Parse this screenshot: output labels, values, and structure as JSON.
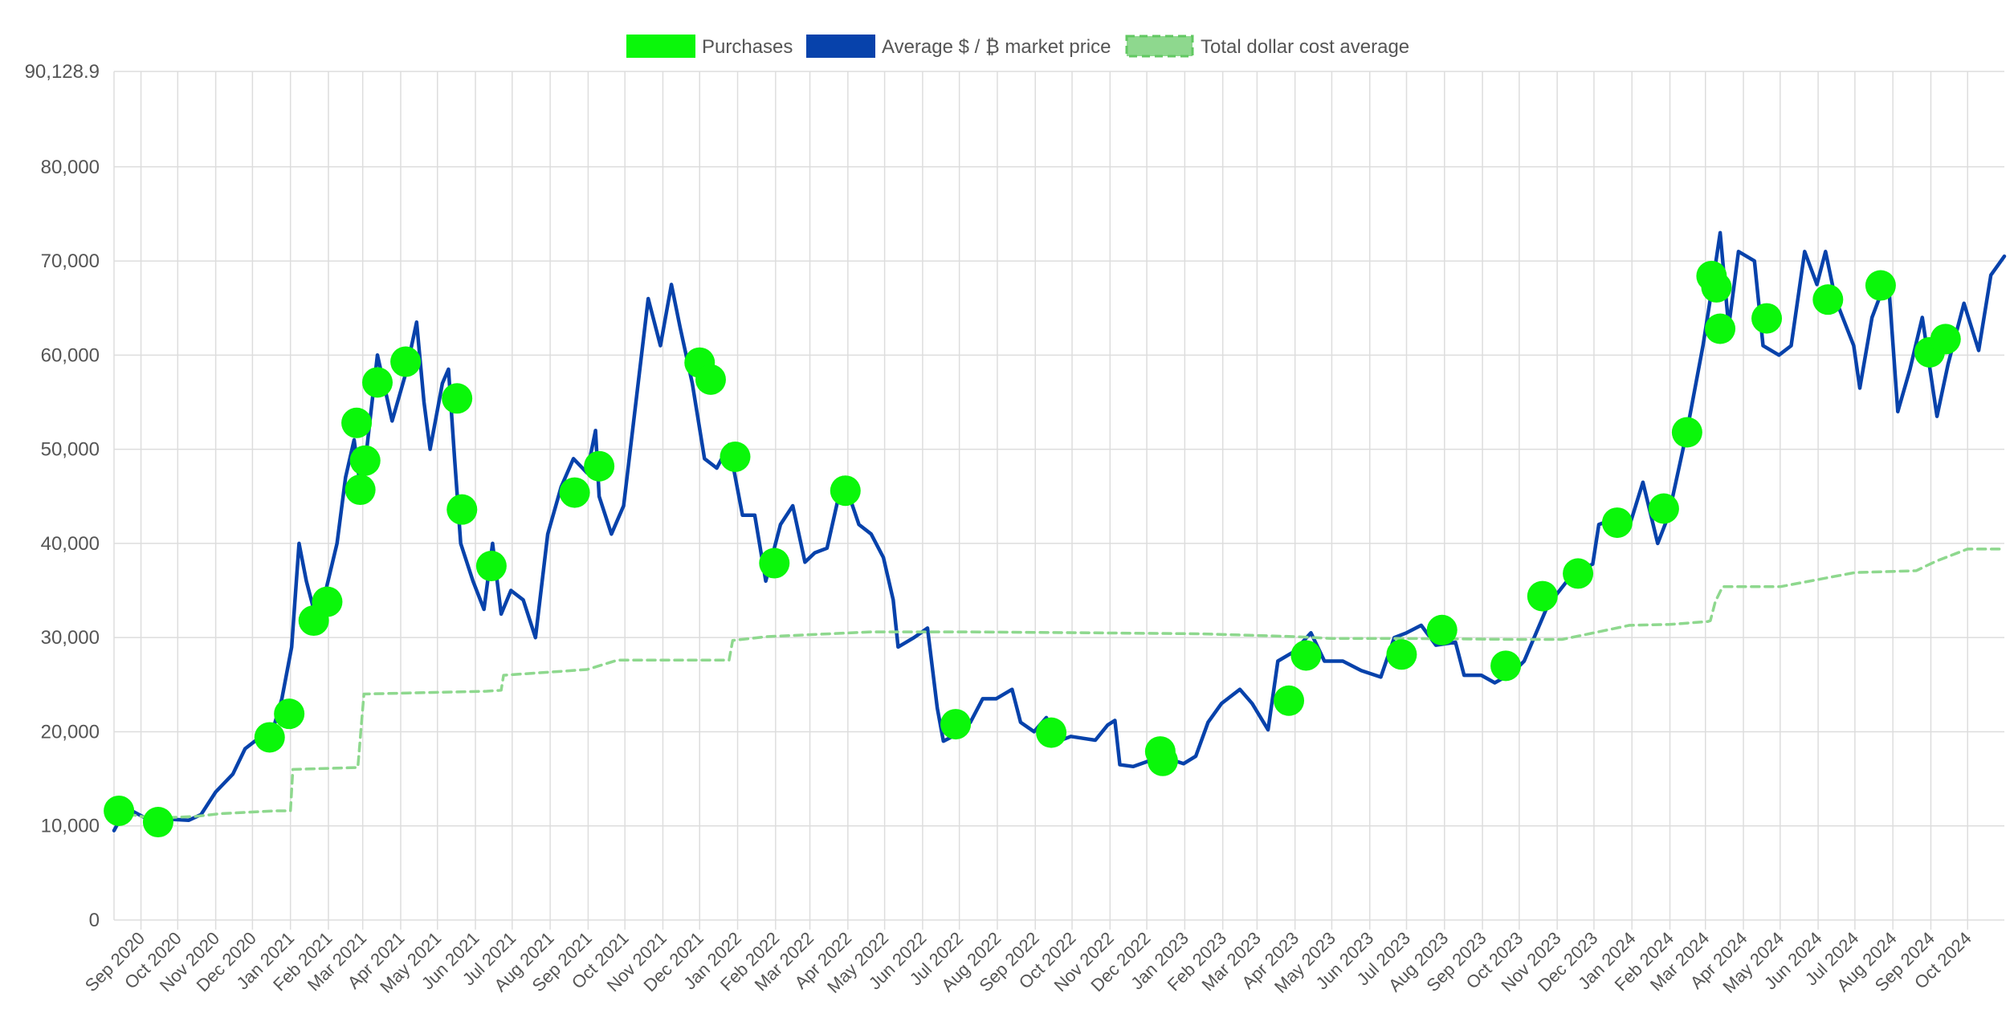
{
  "legend": [
    {
      "label": "Purchases",
      "color": "#0af70a",
      "style": "solid"
    },
    {
      "label": "Average $ / ₿ market price",
      "color": "#0742ab",
      "style": "solid"
    },
    {
      "label": "Total dollar cost average",
      "color": "#8ed88e",
      "style": "dashed"
    }
  ],
  "chart_data": {
    "type": "line",
    "title": "",
    "xlabel": "",
    "ylabel": "",
    "ylim": [
      0,
      90128.9
    ],
    "y_ticks": [
      "0",
      "10,000",
      "20,000",
      "30,000",
      "40,000",
      "50,000",
      "60,000",
      "70,000",
      "80,000",
      "90,128.9"
    ],
    "y_tick_values": [
      0,
      10000,
      20000,
      30000,
      40000,
      50000,
      60000,
      70000,
      80000,
      90128.9
    ],
    "x_range": [
      "2020-08-10",
      "2024-10-31"
    ],
    "x_ticks": [
      "Sep 2020",
      "Oct 2020",
      "Nov 2020",
      "Dec 2020",
      "Jan 2021",
      "Feb 2021",
      "Mar 2021",
      "Apr 2021",
      "May 2021",
      "Jun 2021",
      "Jul 2021",
      "Aug 2021",
      "Sep 2021",
      "Oct 2021",
      "Nov 2021",
      "Dec 2021",
      "Jan 2022",
      "Feb 2022",
      "Mar 2022",
      "Apr 2022",
      "May 2022",
      "Jun 2022",
      "Jul 2022",
      "Aug 2022",
      "Sep 2022",
      "Oct 2022",
      "Nov 2022",
      "Dec 2022",
      "Jan 2023",
      "Feb 2023",
      "Mar 2023",
      "Apr 2023",
      "May 2023",
      "Jun 2023",
      "Jul 2023",
      "Aug 2023",
      "Sep 2023",
      "Oct 2023",
      "Nov 2023",
      "Dec 2023",
      "Jan 2024",
      "Feb 2024",
      "Mar 2024",
      "Apr 2024",
      "May 2024",
      "Jun 2024",
      "Jul 2024",
      "Aug 2024",
      "Sep 2024",
      "Oct 2024"
    ],
    "x_tick_dates": [
      "2020-09-01",
      "2020-10-01",
      "2020-11-01",
      "2020-12-01",
      "2021-01-01",
      "2021-02-01",
      "2021-03-01",
      "2021-04-01",
      "2021-05-01",
      "2021-06-01",
      "2021-07-01",
      "2021-08-01",
      "2021-09-01",
      "2021-10-01",
      "2021-11-01",
      "2021-12-01",
      "2022-01-01",
      "2022-02-01",
      "2022-03-01",
      "2022-04-01",
      "2022-05-01",
      "2022-06-01",
      "2022-07-01",
      "2022-08-01",
      "2022-09-01",
      "2022-10-01",
      "2022-11-01",
      "2022-12-01",
      "2023-01-01",
      "2023-02-01",
      "2023-03-01",
      "2023-04-01",
      "2023-05-01",
      "2023-06-01",
      "2023-07-01",
      "2023-08-01",
      "2023-09-01",
      "2023-10-01",
      "2023-11-01",
      "2023-12-01",
      "2024-01-01",
      "2024-02-01",
      "2024-03-01",
      "2024-04-01",
      "2024-05-01",
      "2024-06-01",
      "2024-07-01",
      "2024-08-01",
      "2024-09-01",
      "2024-10-01"
    ],
    "grid": true,
    "legend_position": "top",
    "series": [
      {
        "name": "Average $ / ₿ market price",
        "color": "#0742ab",
        "points": [
          [
            "2020-08-10",
            9500
          ],
          [
            "2020-08-20",
            11900
          ],
          [
            "2020-09-05",
            10800
          ],
          [
            "2020-09-15",
            10400
          ],
          [
            "2020-09-25",
            10700
          ],
          [
            "2020-10-10",
            10600
          ],
          [
            "2020-10-20",
            11200
          ],
          [
            "2020-11-01",
            13600
          ],
          [
            "2020-11-15",
            15500
          ],
          [
            "2020-11-25",
            18200
          ],
          [
            "2020-12-05",
            19200
          ],
          [
            "2020-12-15",
            19000
          ],
          [
            "2020-12-25",
            23500
          ],
          [
            "2021-01-02",
            29000
          ],
          [
            "2021-01-08",
            40000
          ],
          [
            "2021-01-14",
            36000
          ],
          [
            "2021-01-22",
            32000
          ],
          [
            "2021-01-28",
            34000
          ],
          [
            "2021-02-08",
            40000
          ],
          [
            "2021-02-15",
            47000
          ],
          [
            "2021-02-22",
            51000
          ],
          [
            "2021-02-28",
            45000
          ],
          [
            "2021-03-06",
            52000
          ],
          [
            "2021-03-13",
            60000
          ],
          [
            "2021-03-25",
            53000
          ],
          [
            "2021-04-05",
            58000
          ],
          [
            "2021-04-14",
            63500
          ],
          [
            "2021-04-20",
            55000
          ],
          [
            "2021-04-25",
            50000
          ],
          [
            "2021-05-05",
            57000
          ],
          [
            "2021-05-10",
            58500
          ],
          [
            "2021-05-15",
            49000
          ],
          [
            "2021-05-20",
            40000
          ],
          [
            "2021-05-30",
            36000
          ],
          [
            "2021-06-08",
            33000
          ],
          [
            "2021-06-15",
            40000
          ],
          [
            "2021-06-22",
            32500
          ],
          [
            "2021-06-30",
            35000
          ],
          [
            "2021-07-10",
            34000
          ],
          [
            "2021-07-20",
            30000
          ],
          [
            "2021-07-30",
            41000
          ],
          [
            "2021-08-10",
            46000
          ],
          [
            "2021-08-20",
            49000
          ],
          [
            "2021-08-31",
            47500
          ],
          [
            "2021-09-07",
            52000
          ],
          [
            "2021-09-10",
            45000
          ],
          [
            "2021-09-20",
            41000
          ],
          [
            "2021-09-30",
            44000
          ],
          [
            "2021-10-10",
            55000
          ],
          [
            "2021-10-20",
            66000
          ],
          [
            "2021-10-30",
            61000
          ],
          [
            "2021-11-08",
            67500
          ],
          [
            "2021-11-15",
            63000
          ],
          [
            "2021-11-25",
            57000
          ],
          [
            "2021-12-05",
            49000
          ],
          [
            "2021-12-15",
            48000
          ],
          [
            "2021-12-25",
            50500
          ],
          [
            "2022-01-05",
            43000
          ],
          [
            "2022-01-15",
            43000
          ],
          [
            "2022-01-24",
            36000
          ],
          [
            "2022-02-05",
            42000
          ],
          [
            "2022-02-15",
            44000
          ],
          [
            "2022-02-25",
            38000
          ],
          [
            "2022-03-05",
            39000
          ],
          [
            "2022-03-15",
            39500
          ],
          [
            "2022-03-28",
            47000
          ],
          [
            "2022-04-10",
            42000
          ],
          [
            "2022-04-20",
            41000
          ],
          [
            "2022-04-30",
            38500
          ],
          [
            "2022-05-08",
            34000
          ],
          [
            "2022-05-12",
            29000
          ],
          [
            "2022-05-25",
            30000
          ],
          [
            "2022-06-05",
            31000
          ],
          [
            "2022-06-13",
            22500
          ],
          [
            "2022-06-18",
            19000
          ],
          [
            "2022-06-30",
            19800
          ],
          [
            "2022-07-10",
            21000
          ],
          [
            "2022-07-20",
            23500
          ],
          [
            "2022-07-31",
            23500
          ],
          [
            "2022-08-13",
            24500
          ],
          [
            "2022-08-20",
            21000
          ],
          [
            "2022-08-31",
            20000
          ],
          [
            "2022-09-10",
            21500
          ],
          [
            "2022-09-20",
            19000
          ],
          [
            "2022-09-30",
            19500
          ],
          [
            "2022-10-10",
            19300
          ],
          [
            "2022-10-20",
            19100
          ],
          [
            "2022-10-30",
            20700
          ],
          [
            "2022-11-05",
            21200
          ],
          [
            "2022-11-09",
            16500
          ],
          [
            "2022-11-20",
            16300
          ],
          [
            "2022-12-05",
            17000
          ],
          [
            "2022-12-15",
            17300
          ],
          [
            "2022-12-31",
            16600
          ],
          [
            "2023-01-10",
            17400
          ],
          [
            "2023-01-20",
            21000
          ],
          [
            "2023-01-31",
            23000
          ],
          [
            "2023-02-15",
            24500
          ],
          [
            "2023-02-25",
            23000
          ],
          [
            "2023-03-10",
            20200
          ],
          [
            "2023-03-18",
            27500
          ],
          [
            "2023-03-31",
            28500
          ],
          [
            "2023-04-14",
            30500
          ],
          [
            "2023-04-25",
            27500
          ],
          [
            "2023-05-10",
            27500
          ],
          [
            "2023-05-25",
            26500
          ],
          [
            "2023-06-10",
            25800
          ],
          [
            "2023-06-21",
            30000
          ],
          [
            "2023-07-01",
            30500
          ],
          [
            "2023-07-13",
            31300
          ],
          [
            "2023-07-25",
            29200
          ],
          [
            "2023-08-10",
            29500
          ],
          [
            "2023-08-17",
            26000
          ],
          [
            "2023-08-31",
            26000
          ],
          [
            "2023-09-11",
            25200
          ],
          [
            "2023-09-25",
            26200
          ],
          [
            "2023-10-05",
            27500
          ],
          [
            "2023-10-23",
            33000
          ],
          [
            "2023-10-31",
            34500
          ],
          [
            "2023-11-15",
            37000
          ],
          [
            "2023-11-30",
            37800
          ],
          [
            "2023-12-05",
            42000
          ],
          [
            "2023-12-15",
            42500
          ],
          [
            "2023-12-31",
            42300
          ],
          [
            "2024-01-10",
            46500
          ],
          [
            "2024-01-22",
            40000
          ],
          [
            "2024-01-31",
            43000
          ],
          [
            "2024-02-15",
            52000
          ],
          [
            "2024-02-28",
            61000
          ],
          [
            "2024-03-05",
            66000
          ],
          [
            "2024-03-13",
            73000
          ],
          [
            "2024-03-20",
            63000
          ],
          [
            "2024-03-28",
            71000
          ],
          [
            "2024-04-10",
            70000
          ],
          [
            "2024-04-17",
            61000
          ],
          [
            "2024-04-30",
            60000
          ],
          [
            "2024-05-10",
            61000
          ],
          [
            "2024-05-21",
            71000
          ],
          [
            "2024-05-31",
            67500
          ],
          [
            "2024-06-07",
            71000
          ],
          [
            "2024-06-15",
            66000
          ],
          [
            "2024-06-30",
            61000
          ],
          [
            "2024-07-05",
            56500
          ],
          [
            "2024-07-15",
            64000
          ],
          [
            "2024-07-28",
            68500
          ],
          [
            "2024-08-05",
            54000
          ],
          [
            "2024-08-15",
            58500
          ],
          [
            "2024-08-25",
            64000
          ],
          [
            "2024-09-06",
            53500
          ],
          [
            "2024-09-15",
            59000
          ],
          [
            "2024-09-28",
            65500
          ],
          [
            "2024-10-10",
            60500
          ],
          [
            "2024-10-20",
            68500
          ],
          [
            "2024-10-31",
            70500
          ]
        ]
      },
      {
        "name": "Total dollar cost average",
        "color": "#8ed88e",
        "style": "dashed",
        "points": [
          [
            "2020-08-10",
            11500
          ],
          [
            "2020-09-10",
            10800
          ],
          [
            "2020-10-15",
            11000
          ],
          [
            "2020-11-05",
            11300
          ],
          [
            "2020-12-20",
            11600
          ],
          [
            "2021-01-01",
            11600
          ],
          [
            "2021-01-03",
            16000
          ],
          [
            "2021-02-25",
            16200
          ],
          [
            "2021-03-02",
            24000
          ],
          [
            "2021-06-10",
            24300
          ],
          [
            "2021-06-22",
            24400
          ],
          [
            "2021-06-24",
            26000
          ],
          [
            "2021-08-31",
            26600
          ],
          [
            "2021-09-25",
            27600
          ],
          [
            "2021-12-25",
            27600
          ],
          [
            "2021-12-28",
            29700
          ],
          [
            "2022-01-25",
            30100
          ],
          [
            "2022-04-20",
            30600
          ],
          [
            "2022-07-05",
            30600
          ],
          [
            "2022-10-20",
            30500
          ],
          [
            "2023-01-15",
            30400
          ],
          [
            "2023-04-01",
            30100
          ],
          [
            "2023-05-01",
            29900
          ],
          [
            "2023-06-30",
            29900
          ],
          [
            "2023-09-30",
            29800
          ],
          [
            "2023-11-05",
            29800
          ],
          [
            "2023-12-30",
            31300
          ],
          [
            "2024-02-01",
            31400
          ],
          [
            "2024-03-03",
            31700
          ],
          [
            "2024-03-05",
            31800
          ],
          [
            "2024-03-09",
            33800
          ],
          [
            "2024-03-15",
            35400
          ],
          [
            "2024-05-01",
            35400
          ],
          [
            "2024-07-01",
            36900
          ],
          [
            "2024-08-20",
            37100
          ],
          [
            "2024-09-05",
            38100
          ],
          [
            "2024-10-01",
            39400
          ],
          [
            "2024-10-31",
            39400
          ]
        ]
      },
      {
        "name": "Purchases",
        "color": "#0af70a",
        "type": "scatter",
        "points": [
          [
            "2020-08-14",
            11600
          ],
          [
            "2020-09-15",
            10400
          ],
          [
            "2020-12-15",
            19400
          ],
          [
            "2020-12-31",
            21900
          ],
          [
            "2021-01-20",
            31800
          ],
          [
            "2021-01-31",
            33800
          ],
          [
            "2021-02-24",
            52800
          ],
          [
            "2021-02-27",
            45700
          ],
          [
            "2021-03-03",
            48800
          ],
          [
            "2021-03-13",
            57100
          ],
          [
            "2021-04-05",
            59300
          ],
          [
            "2021-05-17",
            55400
          ],
          [
            "2021-05-21",
            43600
          ],
          [
            "2021-06-14",
            37600
          ],
          [
            "2021-08-21",
            45400
          ],
          [
            "2021-09-10",
            48200
          ],
          [
            "2021-12-01",
            59200
          ],
          [
            "2021-12-10",
            57400
          ],
          [
            "2021-12-30",
            49200
          ],
          [
            "2022-01-31",
            37900
          ],
          [
            "2022-03-30",
            45600
          ],
          [
            "2022-06-28",
            20800
          ],
          [
            "2022-09-14",
            19900
          ],
          [
            "2022-12-12",
            17900
          ],
          [
            "2022-12-14",
            16900
          ],
          [
            "2023-03-27",
            23300
          ],
          [
            "2023-04-10",
            28100
          ],
          [
            "2023-06-27",
            28200
          ],
          [
            "2023-07-30",
            30800
          ],
          [
            "2023-09-20",
            27000
          ],
          [
            "2023-10-20",
            34400
          ],
          [
            "2023-11-18",
            36800
          ],
          [
            "2023-12-20",
            42200
          ],
          [
            "2024-01-27",
            43700
          ],
          [
            "2024-02-15",
            51800
          ],
          [
            "2024-03-06",
            68400
          ],
          [
            "2024-03-10",
            67200
          ],
          [
            "2024-03-13",
            62800
          ],
          [
            "2024-04-20",
            63900
          ],
          [
            "2024-06-09",
            65900
          ],
          [
            "2024-07-22",
            67400
          ],
          [
            "2024-08-31",
            60300
          ],
          [
            "2024-09-13",
            61700
          ]
        ]
      }
    ]
  }
}
